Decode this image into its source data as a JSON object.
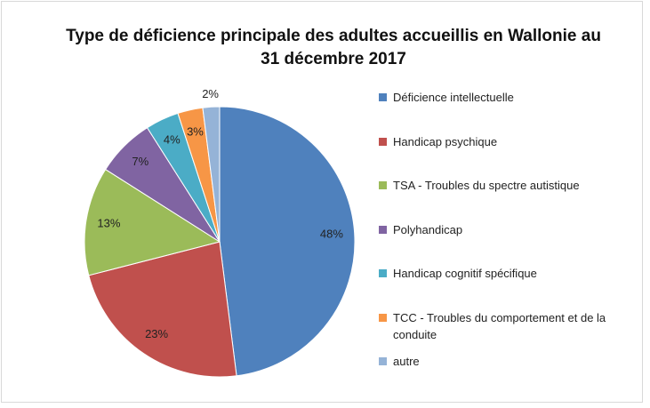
{
  "chart_data": {
    "type": "pie",
    "title": "Type de déficience principale des adultes accueillis en Wallonie au 31 décembre 2017",
    "categories": [
      "Déficience intellectuelle",
      "Handicap psychique",
      "TSA - Troubles du spectre autistique",
      "Polyhandicap",
      "Handicap cognitif spécifique",
      "TCC - Troubles du comportement et de la conduite",
      "autre"
    ],
    "values": [
      48,
      23,
      13,
      7,
      4,
      3,
      2
    ],
    "value_labels": [
      "48%",
      "23%",
      "13%",
      "7%",
      "4%",
      "3%",
      "2%"
    ],
    "colors": [
      "#4f81bd",
      "#c0504d",
      "#9bbb59",
      "#8064a2",
      "#4bacc6",
      "#f79646",
      "#95b3d7"
    ],
    "legend": "right"
  }
}
